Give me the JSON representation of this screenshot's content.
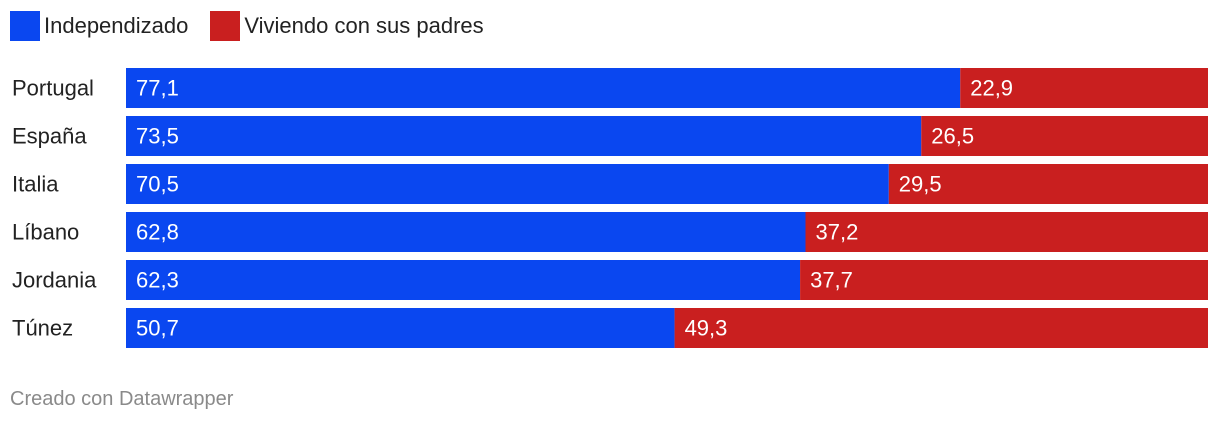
{
  "chart_data": {
    "type": "bar",
    "orientation": "horizontal",
    "stacked": true,
    "categories": [
      "Portugal",
      "España",
      "Italia",
      "Líbano",
      "Jordania",
      "Túnez"
    ],
    "series": [
      {
        "name": "Independizado",
        "color": "#0a47f0",
        "values": [
          77.1,
          73.5,
          70.5,
          62.8,
          62.3,
          50.7
        ],
        "labels": [
          "77,1",
          "73,5",
          "70,5",
          "62,8",
          "62,3",
          "50,7"
        ]
      },
      {
        "name": "Viviendo con sus padres",
        "color": "#c91f1f",
        "values": [
          22.9,
          26.5,
          29.5,
          37.2,
          37.7,
          49.3
        ],
        "labels": [
          "22,9",
          "26,5",
          "29,5",
          "37,2",
          "37,7",
          "49,3"
        ]
      }
    ],
    "xlim": [
      0,
      100
    ],
    "legend_position": "top-left",
    "grid": false
  },
  "credit": "Creado con Datawrapper"
}
